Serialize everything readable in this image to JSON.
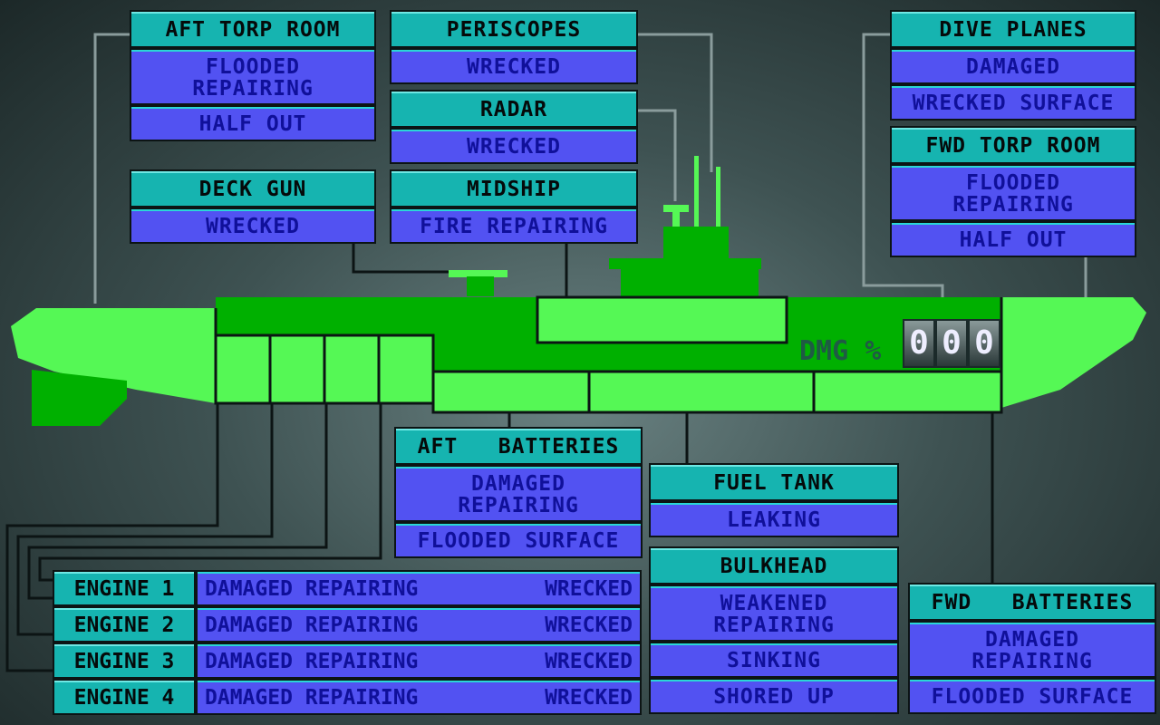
{
  "colors": {
    "header": "#16b4b0",
    "status": "#5252f2",
    "hull_light": "#55f855",
    "hull_dark": "#00b000"
  },
  "panels": {
    "aft_torp_room": {
      "title": "AFT TORP ROOM",
      "rows": [
        [
          "FLOODED",
          "REPAIRING"
        ],
        [
          "HALF OUT"
        ]
      ]
    },
    "periscopes": {
      "title": "PERISCOPES",
      "rows": [
        [
          "WRECKED"
        ]
      ]
    },
    "radar": {
      "title": "RADAR",
      "rows": [
        [
          "WRECKED"
        ]
      ]
    },
    "deck_gun": {
      "title": "DECK GUN",
      "rows": [
        [
          "WRECKED"
        ]
      ]
    },
    "midship": {
      "title": "MIDSHIP",
      "rows": [
        [
          "FIRE REPAIRING"
        ]
      ]
    },
    "dive_planes": {
      "title": "DIVE PLANES",
      "rows": [
        [
          "DAMAGED"
        ],
        [
          "WRECKED SURFACE"
        ]
      ]
    },
    "fwd_torp_room": {
      "title": "FWD TORP ROOM",
      "rows": [
        [
          "FLOODED",
          "REPAIRING"
        ],
        [
          "HALF OUT"
        ]
      ]
    },
    "aft_batteries": {
      "title": "AFT   BATTERIES",
      "rows": [
        [
          "DAMAGED",
          "REPAIRING"
        ],
        [
          "FLOODED SURFACE"
        ]
      ]
    },
    "fuel_tank": {
      "title": "FUEL TANK",
      "rows": [
        [
          "LEAKING"
        ]
      ]
    },
    "bulkhead": {
      "title": "BULKHEAD",
      "rows": [
        [
          "WEAKENED",
          "REPAIRING"
        ],
        [
          "SINKING"
        ],
        [
          "SHORED UP"
        ]
      ]
    },
    "fwd_batteries": {
      "title": "FWD   BATTERIES",
      "rows": [
        [
          "DAMAGED",
          "REPAIRING"
        ],
        [
          "FLOODED SURFACE"
        ]
      ]
    }
  },
  "engines": [
    {
      "label": "ENGINE 1",
      "status": "DAMAGED REPAIRING",
      "state": "WRECKED"
    },
    {
      "label": "ENGINE 2",
      "status": "DAMAGED REPAIRING",
      "state": "WRECKED"
    },
    {
      "label": "ENGINE 3",
      "status": "DAMAGED REPAIRING",
      "state": "WRECKED"
    },
    {
      "label": "ENGINE 4",
      "status": "DAMAGED REPAIRING",
      "state": "WRECKED"
    }
  ],
  "damage": {
    "label": "DMG %",
    "digits": [
      "0",
      "0",
      "0"
    ]
  }
}
